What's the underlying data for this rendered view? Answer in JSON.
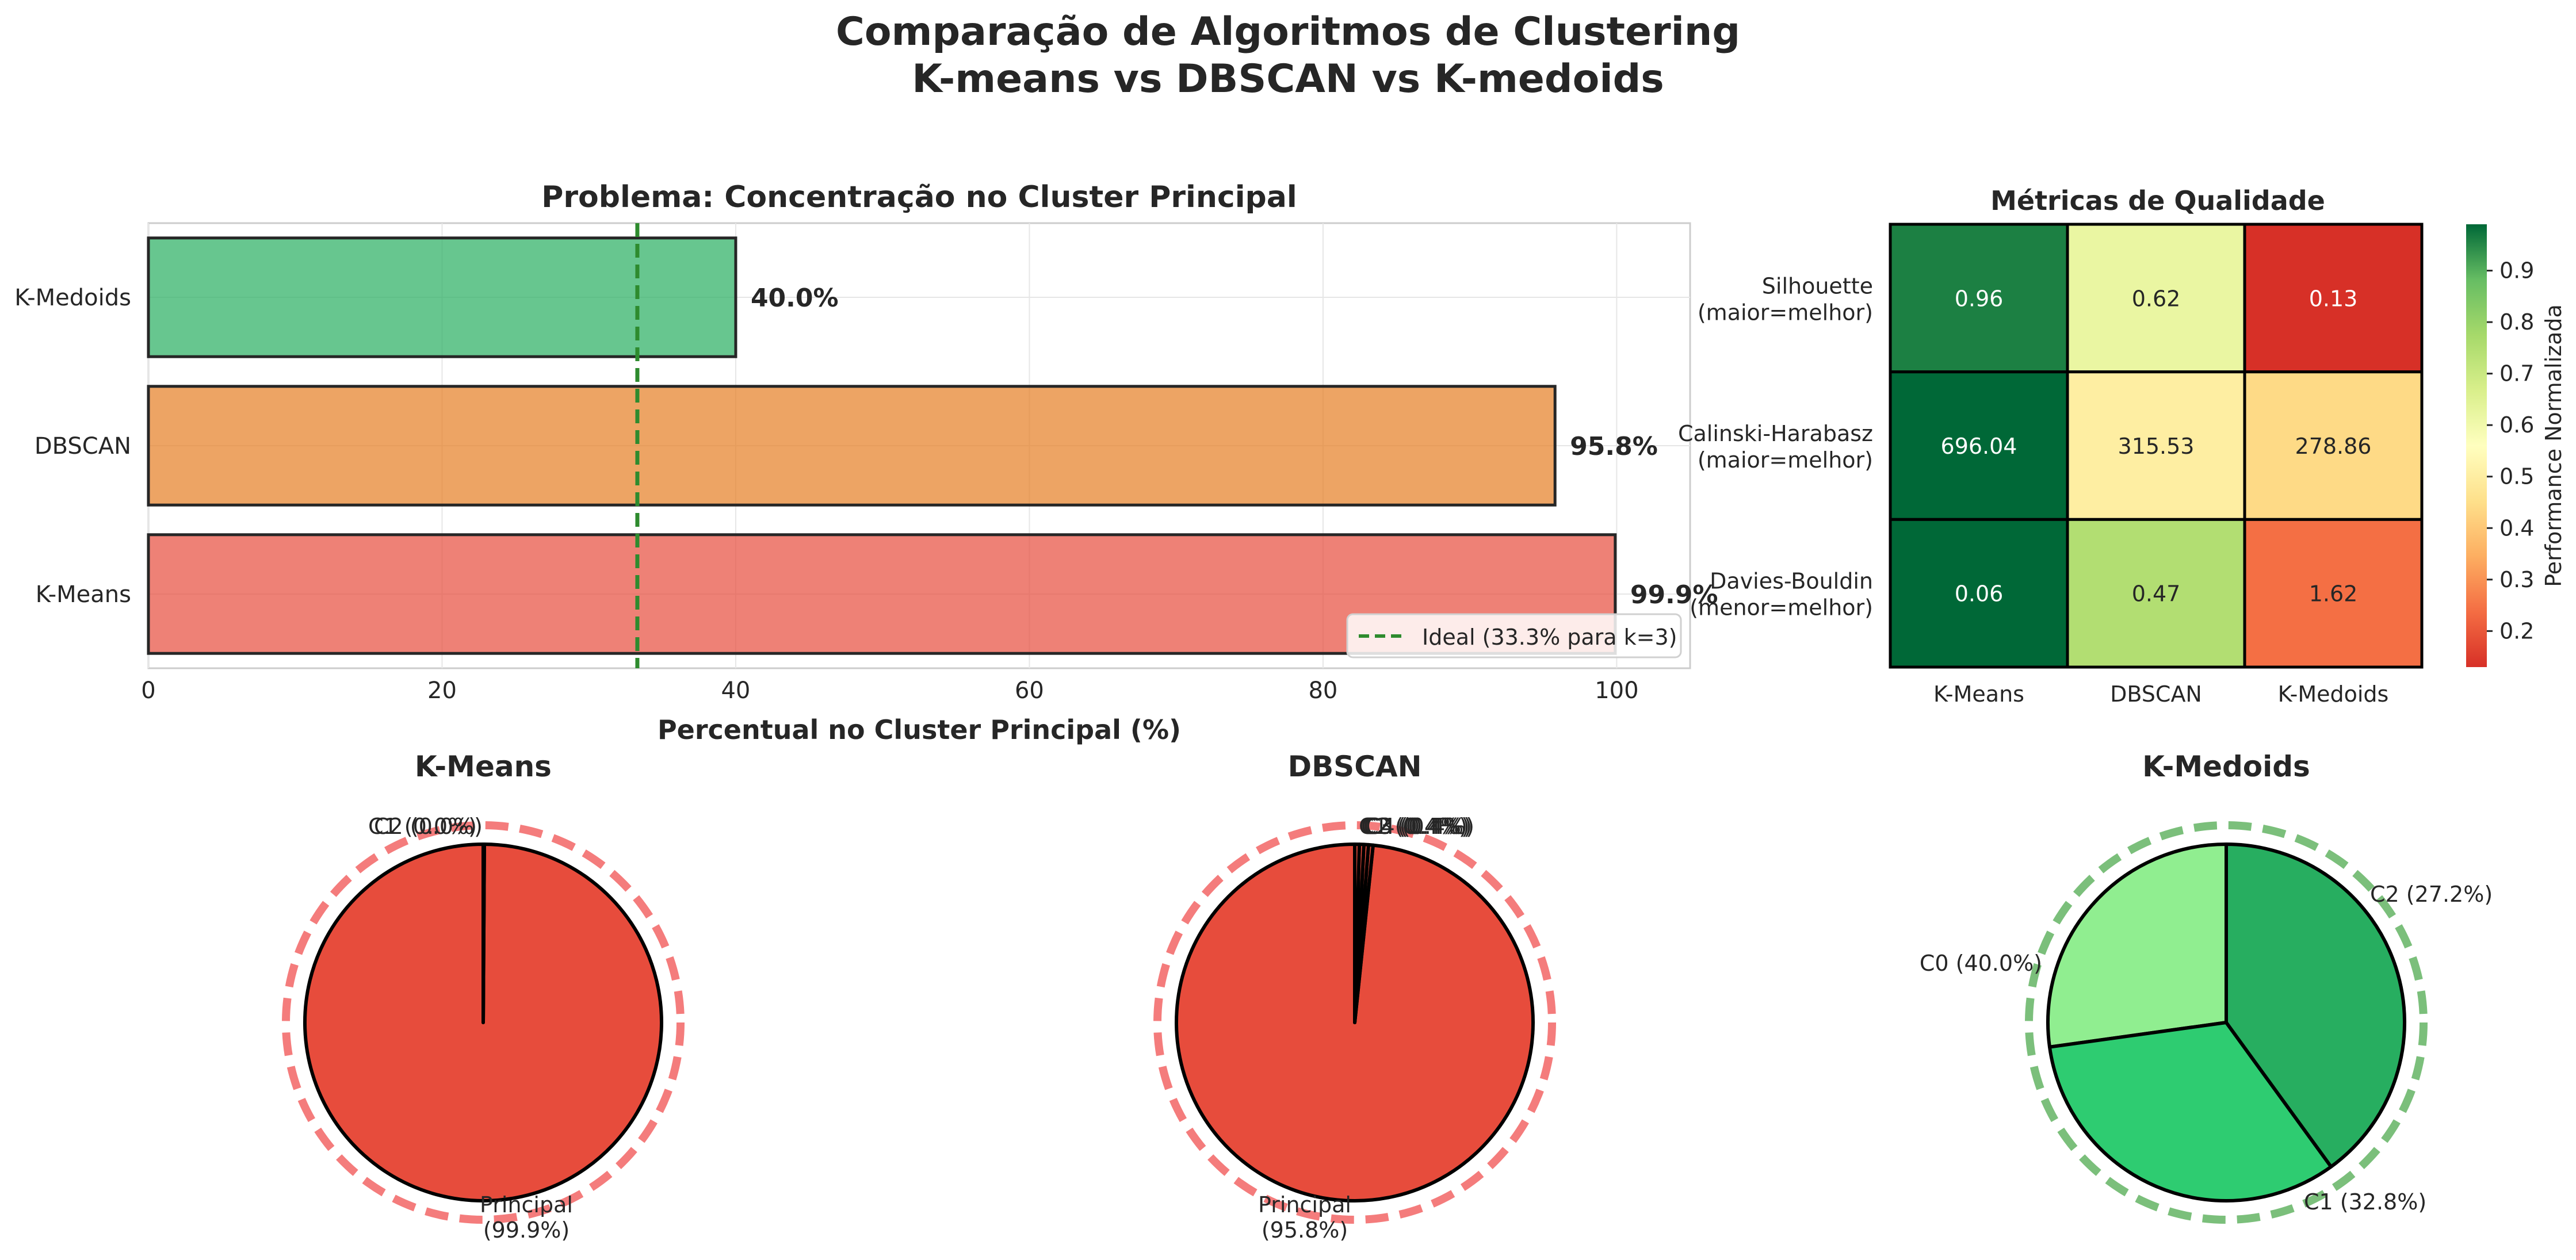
{
  "suptitle": [
    "Comparação de Algoritmos de Clustering",
    "K-means vs DBSCAN vs K-medoids"
  ],
  "colors": {
    "red": "#e74c3c",
    "orange": "#e67e22",
    "green": "#27ae60",
    "light_green": "#90ee90",
    "mid_green": "#2ecc71",
    "ideal_line": "#2e8b2e",
    "ring_red": "#f47c7c",
    "ring_green": "#7bbf7b"
  },
  "chart_data": [
    {
      "type": "bar",
      "orientation": "horizontal",
      "title": "Problema: Concentração no Cluster Principal",
      "xlabel": "Percentual no Cluster Principal (%)",
      "ylabel": "",
      "categories": [
        "K-Means",
        "DBSCAN",
        "K-Medoids"
      ],
      "values": [
        99.9,
        95.8,
        40.0
      ],
      "value_labels": [
        "99.9%",
        "95.8%",
        "40.0%"
      ],
      "bar_colors": [
        "#e74c3c",
        "#e67e22",
        "#27ae60"
      ],
      "xlim": [
        0,
        105
      ],
      "xticks": [
        0,
        20,
        40,
        60,
        80,
        100
      ],
      "ideal_value": 33.3,
      "legend": [
        "Ideal (33.3% para k=3)"
      ],
      "legend_position": "lower-right",
      "grid": true
    },
    {
      "type": "heatmap",
      "title": "Métricas de Qualidade",
      "columns": [
        "K-Means",
        "DBSCAN",
        "K-Medoids"
      ],
      "rows": [
        [
          "Silhouette",
          "(maior=melhor)"
        ],
        [
          "Calinski-Harabasz",
          "(maior=melhor)"
        ],
        [
          "Davies-Bouldin",
          "(menor=melhor)"
        ]
      ],
      "values": [
        [
          "0.96",
          "0.62",
          "0.13"
        ],
        [
          "696.04",
          "315.53",
          "278.86"
        ],
        [
          "0.06",
          "0.47",
          "1.62"
        ]
      ],
      "normalized": [
        [
          0.96,
          0.62,
          0.13
        ],
        [
          0.99,
          0.5,
          0.44
        ],
        [
          0.99,
          0.75,
          0.24
        ]
      ],
      "colorbar_label": "Performance Normalizada",
      "colorbar_range": [
        0.13,
        0.99
      ],
      "colorbar_ticks": [
        "0.2",
        "0.3",
        "0.4",
        "0.5",
        "0.6",
        "0.7",
        "0.8",
        "0.9"
      ],
      "colormap": "RdYlGn"
    },
    {
      "type": "pie",
      "title": "K-Means",
      "slices": [
        {
          "label": "Principal\n(99.9%)",
          "value": 99.9,
          "color": "#e74c3c"
        },
        {
          "label": "C1 (0.0%)",
          "value": 0.05,
          "color": "#e74c3c"
        },
        {
          "label": "C2 (0.0%)",
          "value": 0.05,
          "color": "#e74c3c"
        }
      ]
    },
    {
      "type": "pie",
      "title": "DBSCAN",
      "slices": [
        {
          "label": "Principal\n(95.8%)",
          "value": 95.8,
          "color": "#e74c3c"
        },
        {
          "label": "C1 (0.4%)",
          "value": 0.4,
          "color": "#e74c3c"
        },
        {
          "label": "C2 (0.4%)",
          "value": 0.4,
          "color": "#e74c3c"
        },
        {
          "label": "C3 (0.4%)",
          "value": 0.4,
          "color": "#e74c3c"
        },
        {
          "label": "C4 (0.4%)",
          "value": 0.4,
          "color": "#e74c3c"
        }
      ]
    },
    {
      "type": "pie",
      "title": "K-Medoids",
      "slices": [
        {
          "label": "C2 (27.2%)",
          "value": 27.2,
          "color": "#90ee90"
        },
        {
          "label": "C1 (32.8%)",
          "value": 32.8,
          "color": "#2ecc71"
        },
        {
          "label": "C0 (40.0%)",
          "value": 40.0,
          "color": "#27ae60"
        }
      ]
    }
  ]
}
